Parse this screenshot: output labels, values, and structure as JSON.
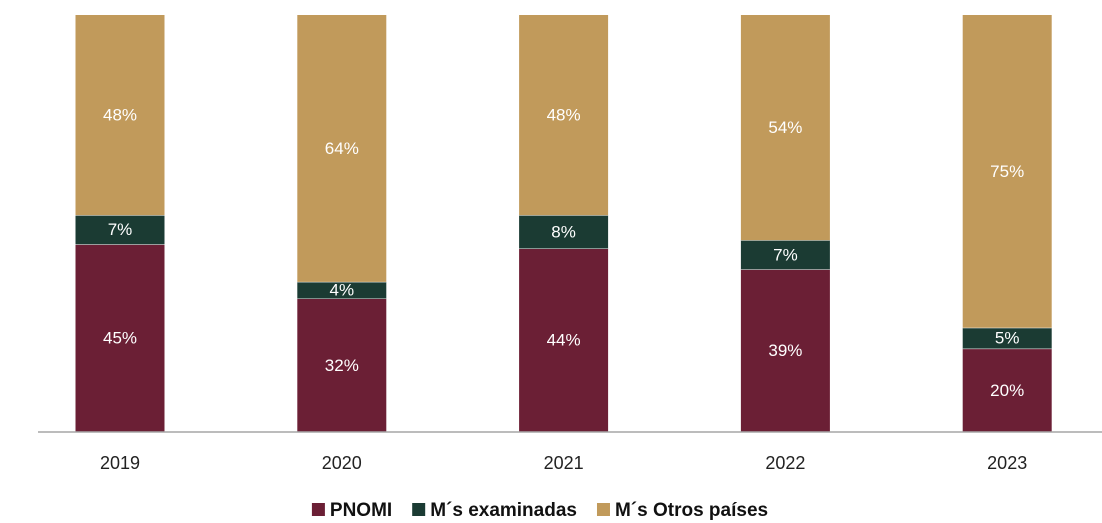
{
  "chart_data": {
    "type": "stacked_bar",
    "categories": [
      "2019",
      "2020",
      "2021",
      "2022",
      "2023"
    ],
    "series": [
      {
        "name": "PNOMI",
        "color": "#6b1f35",
        "values": [
          45,
          32,
          44,
          39,
          20
        ],
        "value_labels": [
          "45%",
          "32%",
          "44%",
          "39%",
          "20%"
        ]
      },
      {
        "name": "M´s examinadas",
        "color": "#1b3b33",
        "values": [
          7,
          4,
          8,
          7,
          5
        ],
        "value_labels": [
          "7%",
          "4%",
          "8%",
          "7%",
          "5%"
        ]
      },
      {
        "name": "M´s Otros países",
        "color": "#c19a5b",
        "values": [
          48,
          64,
          48,
          54,
          75
        ],
        "value_labels": [
          "48%",
          "64%",
          "48%",
          "54%",
          "75%"
        ]
      }
    ],
    "legend": "bottom"
  }
}
